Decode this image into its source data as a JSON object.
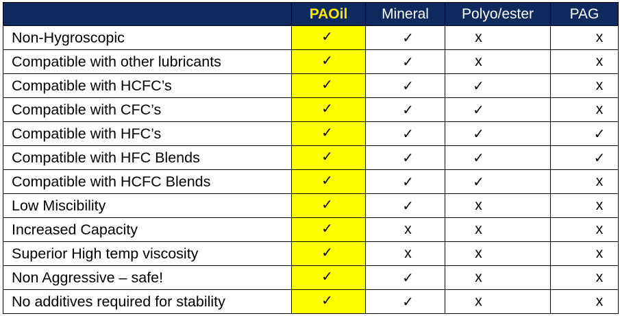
{
  "table": {
    "columns": [
      "",
      "PAOil",
      "Mineral",
      "Polyo/ester",
      "PAG"
    ],
    "highlight_column": 1,
    "highlight_color": "#ffff00",
    "header_bg": "#0e2a5e",
    "highlight_text_color": "#ffe600",
    "rows": [
      {
        "label": "Non-Hygroscopic",
        "values": [
          "✓",
          "✓",
          "x",
          "x"
        ]
      },
      {
        "label": "Compatible with other lubricants",
        "values": [
          "✓",
          "✓",
          "x",
          "x"
        ]
      },
      {
        "label": "Compatible with HCFC’s",
        "values": [
          "✓",
          "✓",
          "✓",
          "x"
        ]
      },
      {
        "label": "Compatible with CFC’s",
        "values": [
          "✓",
          "✓",
          "✓",
          "x"
        ]
      },
      {
        "label": "Compatible with HFC’s",
        "values": [
          "✓",
          "✓",
          "✓",
          "✓"
        ]
      },
      {
        "label": "Compatible with HFC Blends",
        "values": [
          "✓",
          "✓",
          "✓",
          "✓"
        ]
      },
      {
        "label": "Compatible with HCFC Blends",
        "values": [
          "✓",
          "✓",
          "✓",
          "x"
        ]
      },
      {
        "label": "Low Miscibility",
        "values": [
          "✓",
          "✓",
          "x",
          "x"
        ]
      },
      {
        "label": "Increased Capacity",
        "values": [
          "✓",
          "x",
          "x",
          "x"
        ]
      },
      {
        "label": "Superior High temp viscosity",
        "values": [
          "✓",
          "x",
          "x",
          "x"
        ]
      },
      {
        "label": "Non Aggressive – safe!",
        "values": [
          "✓",
          "✓",
          "x",
          "x"
        ]
      },
      {
        "label": "No additives required for stability",
        "values": [
          "✓",
          "✓",
          "x",
          "x"
        ]
      }
    ]
  }
}
